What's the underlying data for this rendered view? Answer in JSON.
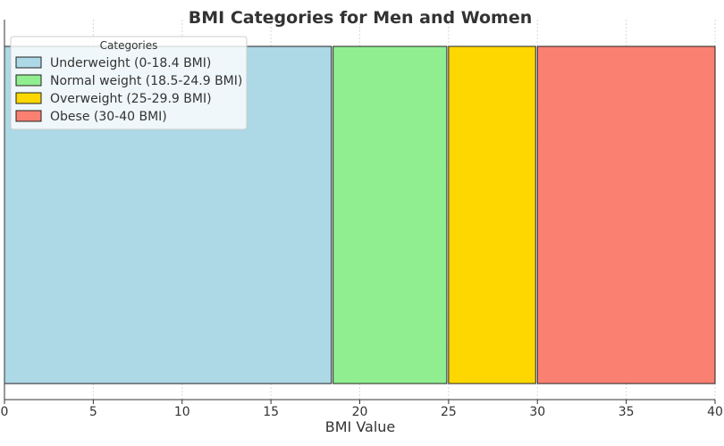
{
  "chart_data": {
    "type": "bar",
    "orientation": "horizontal-span",
    "title": "BMI Categories for Men and Women",
    "xlabel": "BMI Value",
    "ylabel": "",
    "xlim": [
      0,
      40
    ],
    "xticks": [
      0,
      5,
      10,
      15,
      20,
      25,
      30,
      35,
      40
    ],
    "grid": true,
    "legend_title": "Categories",
    "legend_position": "top-left",
    "series": [
      {
        "name": "Underweight (0-18.4 BMI)",
        "start": 0,
        "end": 18.4,
        "color": "#add8e6"
      },
      {
        "name": "Normal weight (18.5-24.9 BMI)",
        "start": 18.5,
        "end": 24.9,
        "color": "#90ee90"
      },
      {
        "name": "Overweight (25-29.9 BMI)",
        "start": 25,
        "end": 29.9,
        "color": "#ffd700"
      },
      {
        "name": "Obese (30-40 BMI)",
        "start": 30,
        "end": 40,
        "color": "#fa8072"
      }
    ]
  }
}
